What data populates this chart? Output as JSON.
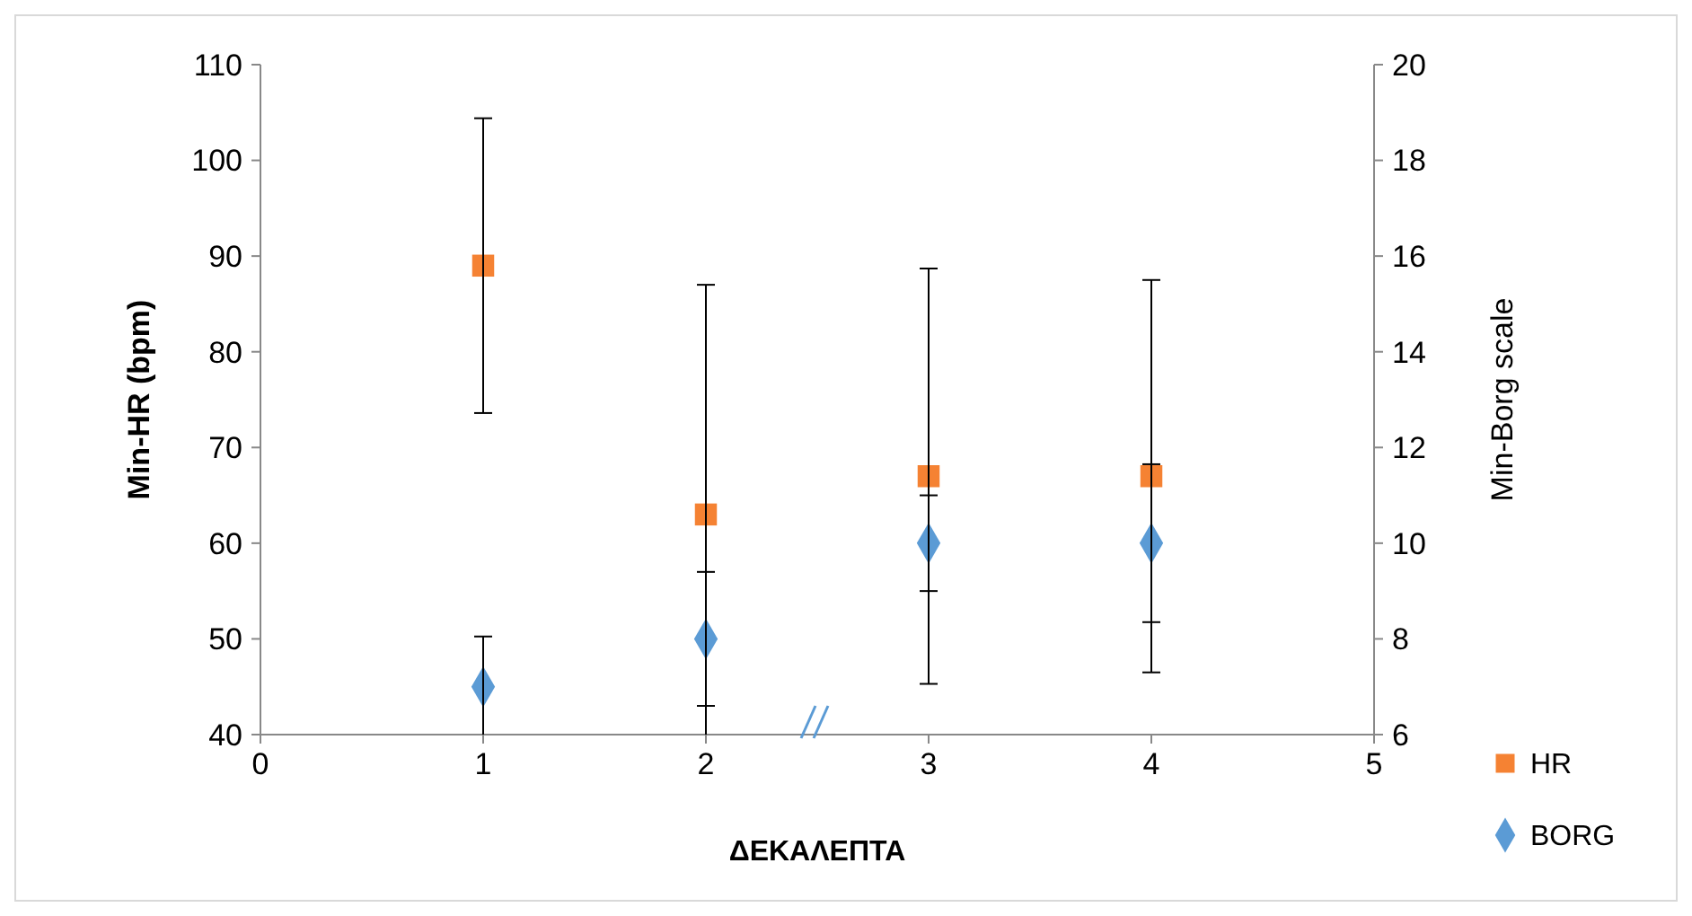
{
  "chart_data": {
    "type": "scatter",
    "xlabel": "ΔΕΚΑΛΕΠΤΑ",
    "ylabel": "Min-HR (bpm)",
    "y2label": "Min-Borg scale",
    "x": [
      1,
      2,
      3,
      4
    ],
    "xlim": [
      0,
      5
    ],
    "xticks": [
      0,
      1,
      2,
      3,
      4,
      5
    ],
    "ylim": [
      40,
      110
    ],
    "yticks": [
      40,
      50,
      60,
      70,
      80,
      90,
      100,
      110
    ],
    "y2lim": [
      6,
      20
    ],
    "y2ticks": [
      6,
      8,
      10,
      12,
      14,
      16,
      18,
      20
    ],
    "legend": "bottom right",
    "grid": false,
    "series": [
      {
        "name": "HR",
        "color": "#f58233",
        "marker": "square",
        "values": [
          89,
          63,
          67,
          67
        ],
        "errors": [
          [
            73.6,
            104.4
          ],
          [
            40,
            87
          ],
          [
            45.3,
            88.7
          ],
          [
            46.5,
            87.5
          ]
        ]
      },
      {
        "name": "BORG",
        "color": "#5b9bd5",
        "marker": "diamond",
        "axis": "y2",
        "values": [
          7,
          8,
          10,
          10
        ],
        "errors": [
          [
            6,
            8.05
          ],
          [
            6.6,
            9.4
          ],
          [
            9,
            11
          ],
          [
            8.35,
            11.65
          ]
        ]
      }
    ]
  }
}
